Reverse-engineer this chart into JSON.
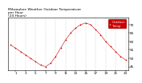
{
  "title": "Milwaukee Weather Outdoor Temperature\nper Hour\n(24 Hours)",
  "hours": [
    0,
    1,
    2,
    3,
    4,
    5,
    6,
    7,
    8,
    9,
    10,
    11,
    12,
    13,
    14,
    15,
    16,
    17,
    18,
    19,
    20,
    21,
    22,
    23
  ],
  "temps": [
    58,
    56,
    54,
    52,
    50,
    48,
    46,
    45,
    47,
    51,
    56,
    61,
    65,
    68,
    70,
    71,
    70,
    67,
    64,
    60,
    57,
    54,
    51,
    49
  ],
  "line_color": "#cc0000",
  "marker_color": "#cc0000",
  "bg_color": "#ffffff",
  "grid_color": "#888888",
  "title_fontsize": 3.2,
  "tick_fontsize": 3.0,
  "ylim": [
    43,
    74
  ],
  "xlim": [
    -0.5,
    23.5
  ],
  "xticks": [
    1,
    3,
    5,
    7,
    9,
    11,
    13,
    15,
    17,
    19,
    21,
    23
  ],
  "yticks": [
    45,
    50,
    55,
    60,
    65,
    70
  ],
  "legend_label": "Outdoor\nTemp",
  "legend_color": "#cc0000",
  "legend_bg": "#ffffff"
}
